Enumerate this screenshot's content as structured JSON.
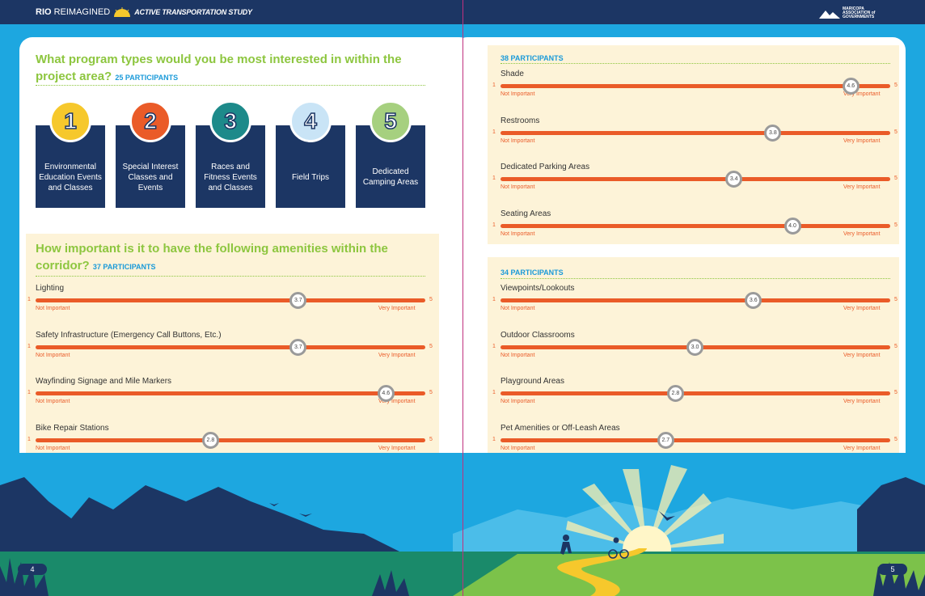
{
  "header": {
    "left_brand": "RIO",
    "left_brand_rest": "REIMAGINED",
    "left_subtitle": "ACTIVE TRANSPORTATION STUDY",
    "right_org": "MARICOPA ASSOCIATION of GOVERNMENTS"
  },
  "program_question": {
    "title": "What program types would you be most interested in within the project area?",
    "participants": "25 PARTICIPANTS",
    "items": [
      {
        "number": "1",
        "label": "Environmental Education Events and Classes",
        "color": "#f6c82c"
      },
      {
        "number": "2",
        "label": "Special Interest Classes and Events",
        "color": "#ea5b28"
      },
      {
        "number": "3",
        "label": "Races and Fitness Events and Classes",
        "color": "#1d8a8a"
      },
      {
        "number": "4",
        "label": "Field Trips",
        "color": "#c9e4f6"
      },
      {
        "number": "5",
        "label": "Dedicated Camping Areas",
        "color": "#a6d07f"
      }
    ]
  },
  "scale_labels": {
    "min": "1",
    "max": "5",
    "low": "Not Important",
    "high": "Very Important"
  },
  "amenities_question": {
    "title": "How important is it to have the following amenities within the corridor?",
    "participants": "37 PARTICIPANTS",
    "items": [
      {
        "label": "Lighting",
        "score": "3.7"
      },
      {
        "label": "Safety Infrastructure (Emergency Call Buttons, Etc.)",
        "score": "3.7"
      },
      {
        "label": "Wayfinding Signage and Mile Markers",
        "score": "4.6"
      },
      {
        "label": "Bike Repair Stations",
        "score": "2.8"
      }
    ]
  },
  "group_38": {
    "participants": "38 PARTICIPANTS",
    "items": [
      {
        "label": "Shade",
        "score": "4.6"
      },
      {
        "label": "Restrooms",
        "score": "3.8"
      },
      {
        "label": "Dedicated Parking Areas",
        "score": "3.4"
      },
      {
        "label": "Seating Areas",
        "score": "4.0"
      }
    ]
  },
  "group_34": {
    "participants": "34 PARTICIPANTS",
    "items": [
      {
        "label": "Viewpoints/Lookouts",
        "score": "3.6"
      },
      {
        "label": "Outdoor Classrooms",
        "score": "3.0"
      },
      {
        "label": "Playground Areas",
        "score": "2.8"
      },
      {
        "label": "Pet Amenities or Off-Leash Areas",
        "score": "2.7"
      }
    ]
  },
  "page_numbers": {
    "left": "4",
    "right": "5"
  }
}
